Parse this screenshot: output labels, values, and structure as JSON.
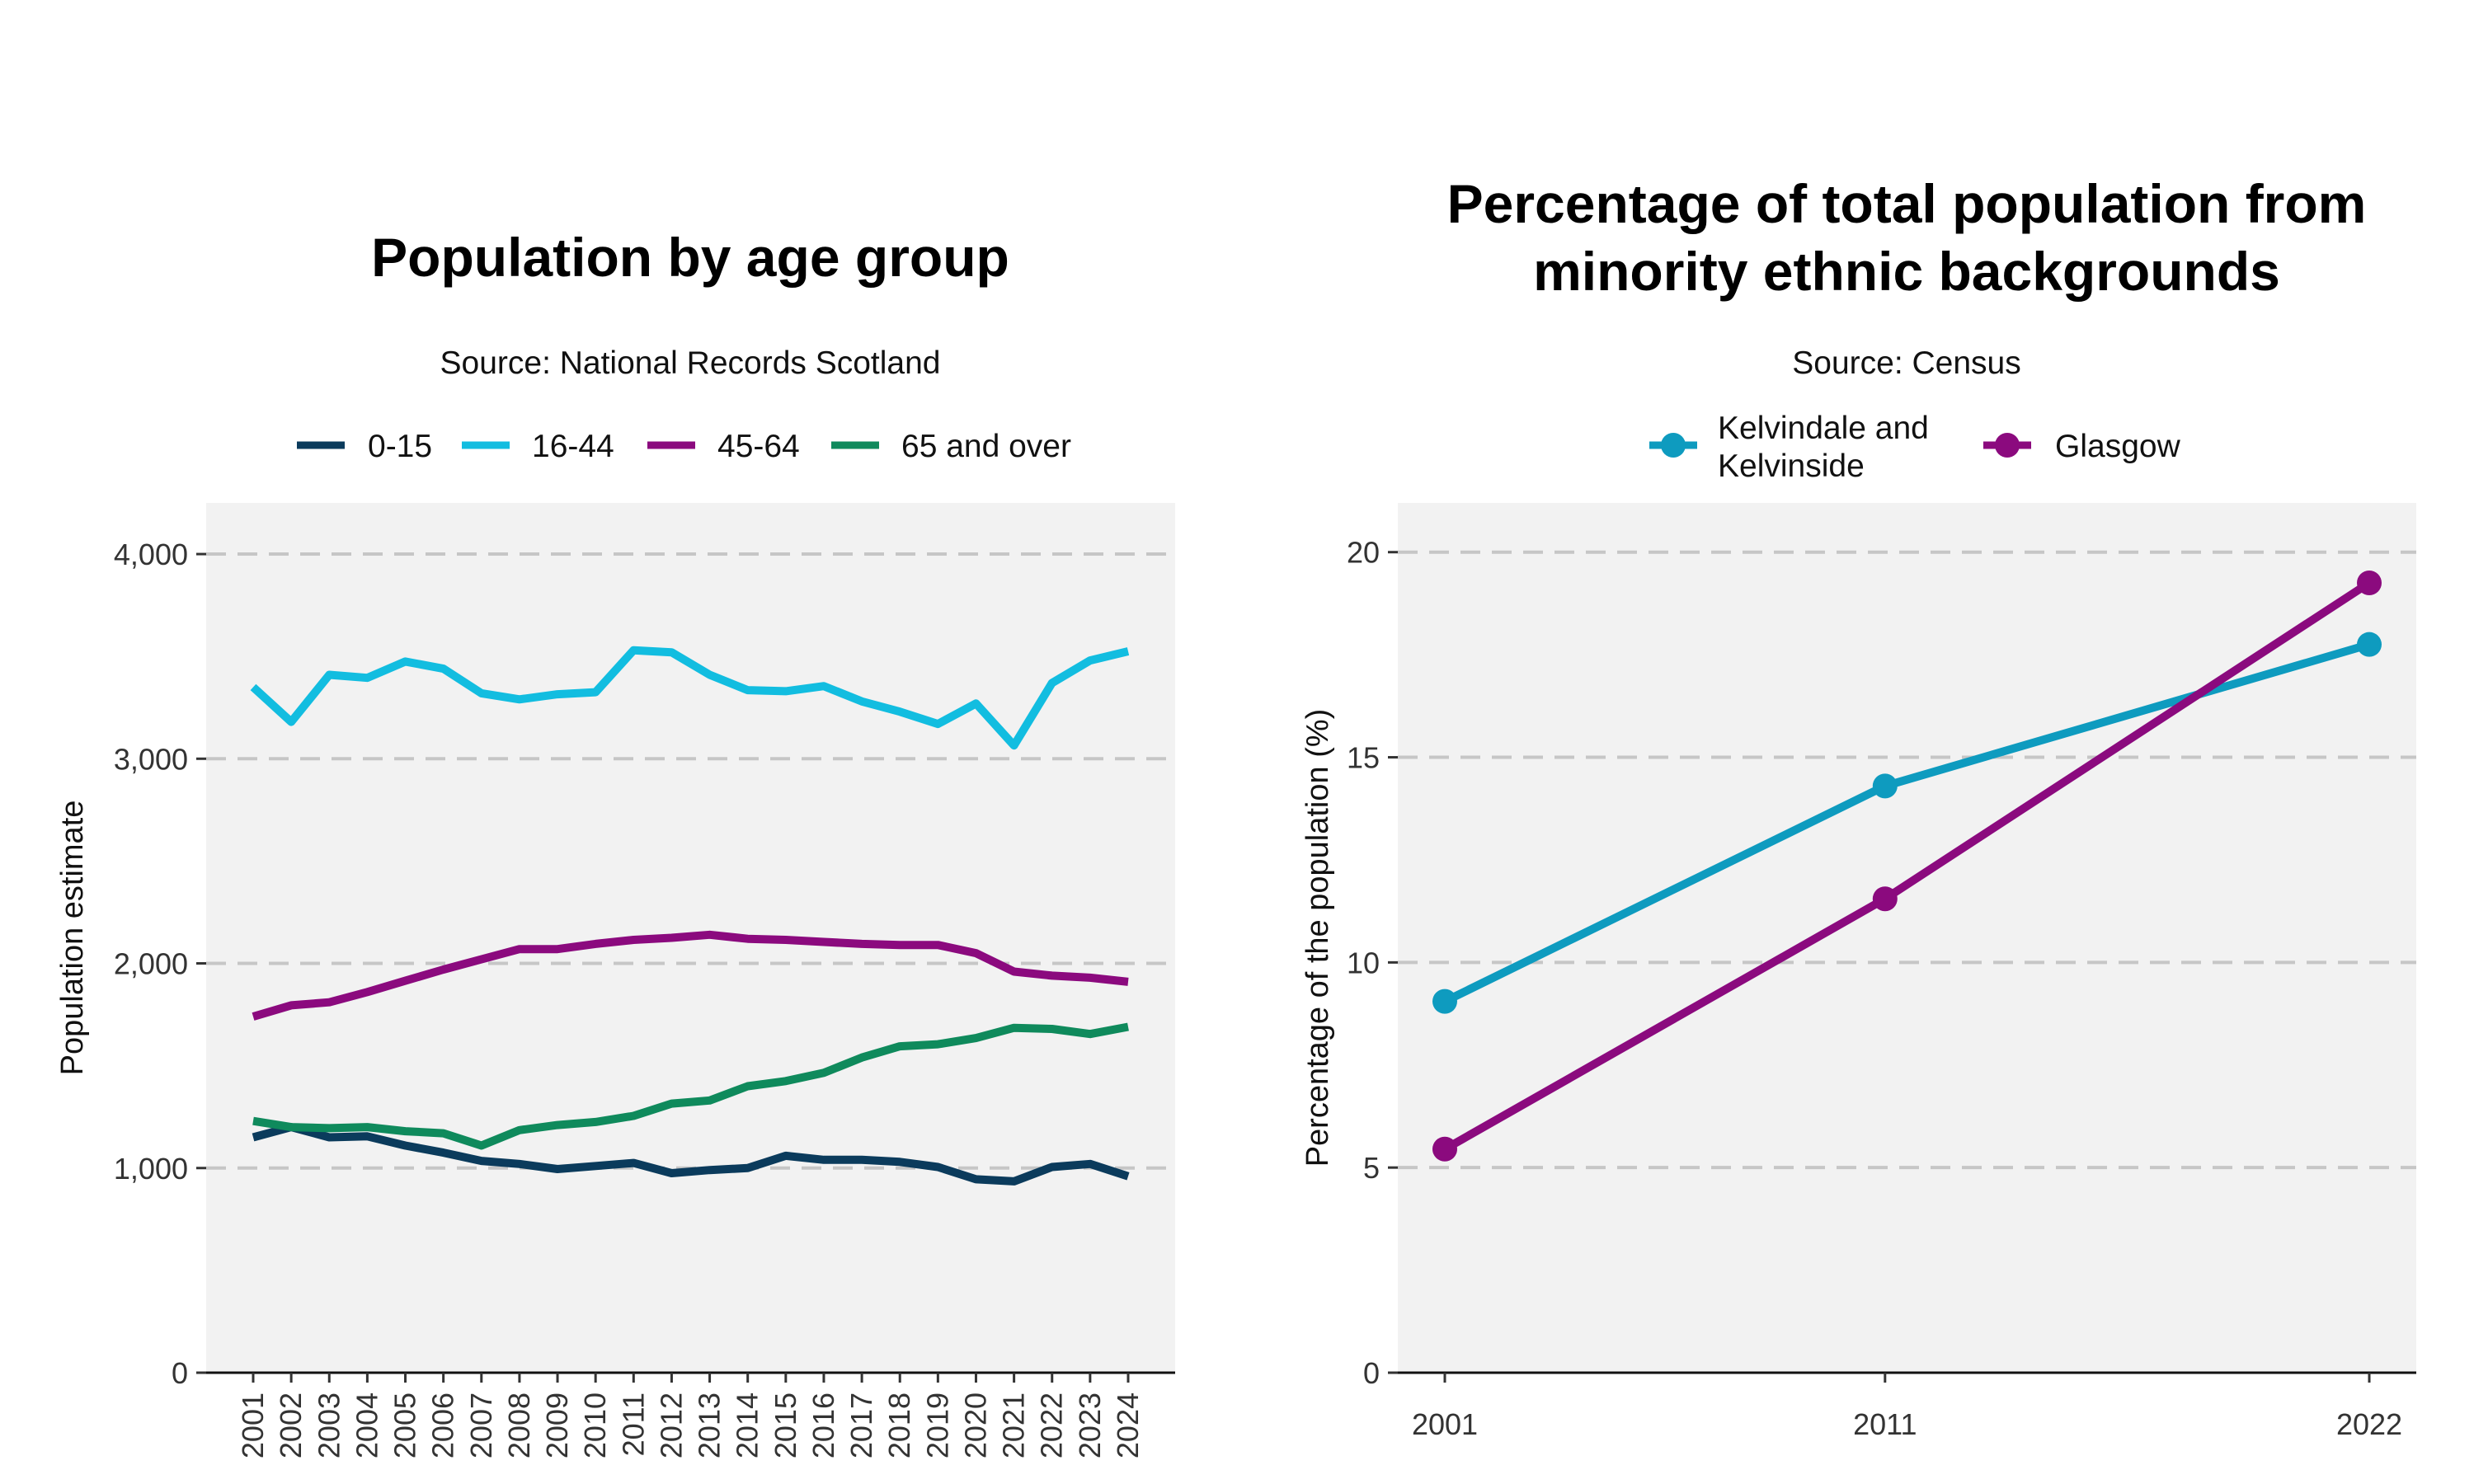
{
  "chart_data": [
    {
      "type": "line",
      "title": "Population by age group",
      "subtitle": "Source: National Records Scotland",
      "xlabel": "",
      "ylabel": "Population estimate",
      "ylim": [
        0,
        4250
      ],
      "y_ticks": [
        0,
        1000,
        2000,
        3000,
        4000
      ],
      "y_tick_labels": [
        "0",
        "1,000",
        "2,000",
        "3,000",
        "4,000"
      ],
      "grid": "horizontal dashed",
      "legend_position": "top",
      "x": [
        "2001",
        "2002",
        "2003",
        "2004",
        "2005",
        "2006",
        "2007",
        "2008",
        "2009",
        "2010",
        "2011",
        "2012",
        "2013",
        "2014",
        "2015",
        "2016",
        "2017",
        "2018",
        "2019",
        "2020",
        "2021",
        "2022",
        "2023",
        "2024"
      ],
      "series": [
        {
          "name": "0-15",
          "color": "#0b3b5c",
          "values": [
            1150,
            1200,
            1150,
            1155,
            1110,
            1075,
            1035,
            1020,
            995,
            1010,
            1025,
            975,
            990,
            1000,
            1060,
            1040,
            1040,
            1030,
            1005,
            945,
            935,
            1005,
            1020,
            960
          ]
        },
        {
          "name": "16-44",
          "color": "#12bde0",
          "values": [
            3350,
            3180,
            3410,
            3395,
            3475,
            3440,
            3320,
            3290,
            3315,
            3325,
            3530,
            3520,
            3410,
            3335,
            3330,
            3355,
            3280,
            3230,
            3170,
            3270,
            3065,
            3370,
            3480,
            3525
          ]
        },
        {
          "name": "45-64",
          "color": "#8b0a7e",
          "values": [
            1740,
            1795,
            1810,
            1860,
            1915,
            1970,
            2020,
            2070,
            2070,
            2095,
            2115,
            2125,
            2140,
            2120,
            2115,
            2105,
            2095,
            2090,
            2090,
            2050,
            1960,
            1940,
            1930,
            1910
          ]
        },
        {
          "name": "65 and over",
          "color": "#0f8a5c",
          "values": [
            1230,
            1200,
            1195,
            1200,
            1180,
            1170,
            1110,
            1185,
            1210,
            1225,
            1255,
            1315,
            1330,
            1400,
            1425,
            1465,
            1540,
            1595,
            1605,
            1635,
            1685,
            1680,
            1655,
            1690
          ]
        }
      ]
    },
    {
      "type": "line",
      "title": [
        "Percentage of total population from",
        "minority ethnic backgrounds"
      ],
      "subtitle": "Source: Census",
      "xlabel": "",
      "ylabel": "Percentage of the population (%)",
      "ylim": [
        0,
        21.2
      ],
      "y_ticks": [
        0,
        5,
        10,
        15,
        20
      ],
      "y_tick_labels": [
        "0",
        "5",
        "10",
        "15",
        "20"
      ],
      "grid": "horizontal dashed",
      "legend_position": "top",
      "x": [
        2001,
        2011,
        2022
      ],
      "x_tick_labels": [
        "2001",
        "2011",
        "2022"
      ],
      "series": [
        {
          "name": [
            "Kelvindale and",
            "Kelvinside"
          ],
          "color": "#0e9bbf",
          "values": [
            9.05,
            14.3,
            17.75
          ]
        },
        {
          "name": "Glasgow",
          "color": "#8b0a7e",
          "values": [
            5.45,
            11.55,
            19.25
          ]
        }
      ]
    }
  ]
}
